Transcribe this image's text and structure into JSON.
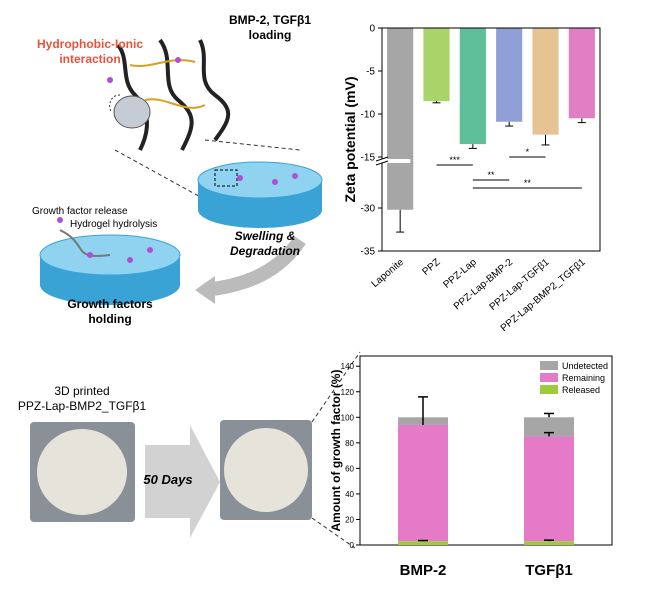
{
  "diagram": {
    "interaction_label": [
      "Hydrophobic-Ionic",
      "interaction"
    ],
    "loading_label": [
      "BMP-2, TGFβ1",
      "loading"
    ],
    "release_label": "Growth factor release",
    "hydrolysis_label": "Hydrogel hydrolysis",
    "swelling_label": [
      "Swelling &",
      "Degradation"
    ],
    "holding_label": [
      "Growth factors",
      "holding"
    ],
    "printed_label": [
      "3D printed",
      "PPZ-Lap-BMP2_TGFβ1"
    ],
    "days_label": "50 Days"
  },
  "chart_data": [
    {
      "type": "bar",
      "y_label": "Zeta potential (mV)",
      "categories": [
        "Laponite",
        "PPZ",
        "PPZ-Lap",
        "PPZ-Lap-BMP-2",
        "PPZ-Lap-TGFβ1",
        "PPZ-Lap-BMP2_TGFβ1"
      ],
      "values": [
        -30.2,
        -8.5,
        -13.5,
        -10.9,
        -12.4,
        -10.5
      ],
      "errors": [
        2.6,
        0.2,
        0.5,
        0.5,
        1.2,
        0.5
      ],
      "colors": [
        "#a6a6a6",
        "#a9d46a",
        "#5fbf9b",
        "#909fd6",
        "#e6c392",
        "#e07fc3"
      ],
      "ylim": [
        -35,
        0
      ],
      "ybreak": [
        -25,
        -15
      ],
      "yticks": [
        0,
        -5,
        -10,
        -15,
        -30,
        -35
      ],
      "annotations": [
        "***",
        "**",
        "*",
        "**"
      ]
    },
    {
      "type": "stacked_bar",
      "y_label": "Amount of growth factor (%)",
      "categories": [
        "BMP-2",
        "TGFβ1"
      ],
      "series": [
        {
          "name": "Released",
          "color": "#9ccc3c",
          "values": [
            3,
            3
          ],
          "errors": [
            0.5,
            0.8
          ]
        },
        {
          "name": "Remaining",
          "color": "#e57bc8",
          "values": [
            91,
            82
          ],
          "errors": [
            22,
            3
          ]
        },
        {
          "name": "Undetected",
          "color": "#a6a6a6",
          "values": [
            6,
            15
          ],
          "errors": [
            0,
            3
          ]
        }
      ],
      "ylim": [
        0,
        148
      ],
      "yticks": [
        0,
        20,
        40,
        60,
        80,
        100,
        120,
        140
      ]
    }
  ]
}
